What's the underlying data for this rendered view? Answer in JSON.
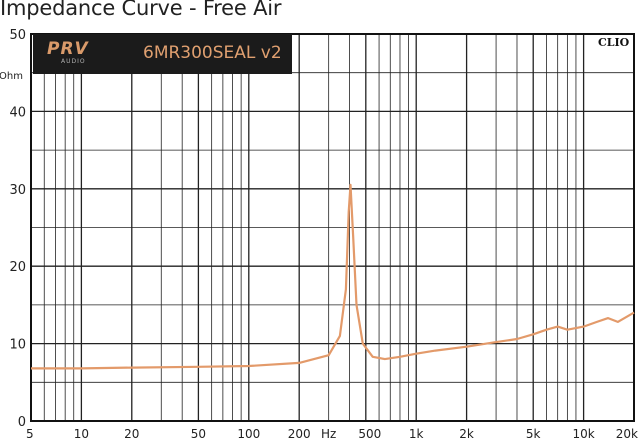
{
  "title": "Impedance Curve - Free Air",
  "brand": {
    "name": "PRV",
    "sub": "AUDIO",
    "model": "6MR300SEAL v2"
  },
  "software_label": "CLIO",
  "colors": {
    "curve": "#e39a6a",
    "grid": "#222222",
    "logo_bg": "#1b1b1b"
  },
  "chart_data": {
    "type": "line",
    "title": "Impedance Curve - Free Air",
    "xlabel": "Hz",
    "ylabel": "Ohm",
    "xscale": "log",
    "xlim": [
      5,
      20000
    ],
    "ylim": [
      0,
      50
    ],
    "grid": true,
    "y_ticks": [
      0,
      10,
      20,
      30,
      40,
      50
    ],
    "x_tick_labels": [
      "5",
      "10",
      "20",
      "50",
      "100",
      "200",
      "Hz",
      "500",
      "1k",
      "2k",
      "5k",
      "10k",
      "20k"
    ],
    "series": [
      {
        "x": [
          5,
          10,
          20,
          50,
          100,
          200,
          300,
          350,
          380,
          395,
          405,
          420,
          440,
          480,
          550,
          650,
          800,
          1000,
          1300,
          2000,
          3000,
          4000,
          5000,
          6000,
          7000,
          8000,
          9000,
          10000,
          12000,
          14000,
          16000,
          20000
        ],
        "y": [
          6.8,
          6.8,
          6.9,
          7.0,
          7.1,
          7.5,
          8.5,
          11,
          17,
          27,
          30.5,
          24,
          15,
          10,
          8.3,
          8,
          8.3,
          8.7,
          9.1,
          9.6,
          10.2,
          10.6,
          11.2,
          11.8,
          12.2,
          11.8,
          12,
          12.2,
          12.8,
          13.3,
          12.8,
          14
        ]
      }
    ]
  }
}
